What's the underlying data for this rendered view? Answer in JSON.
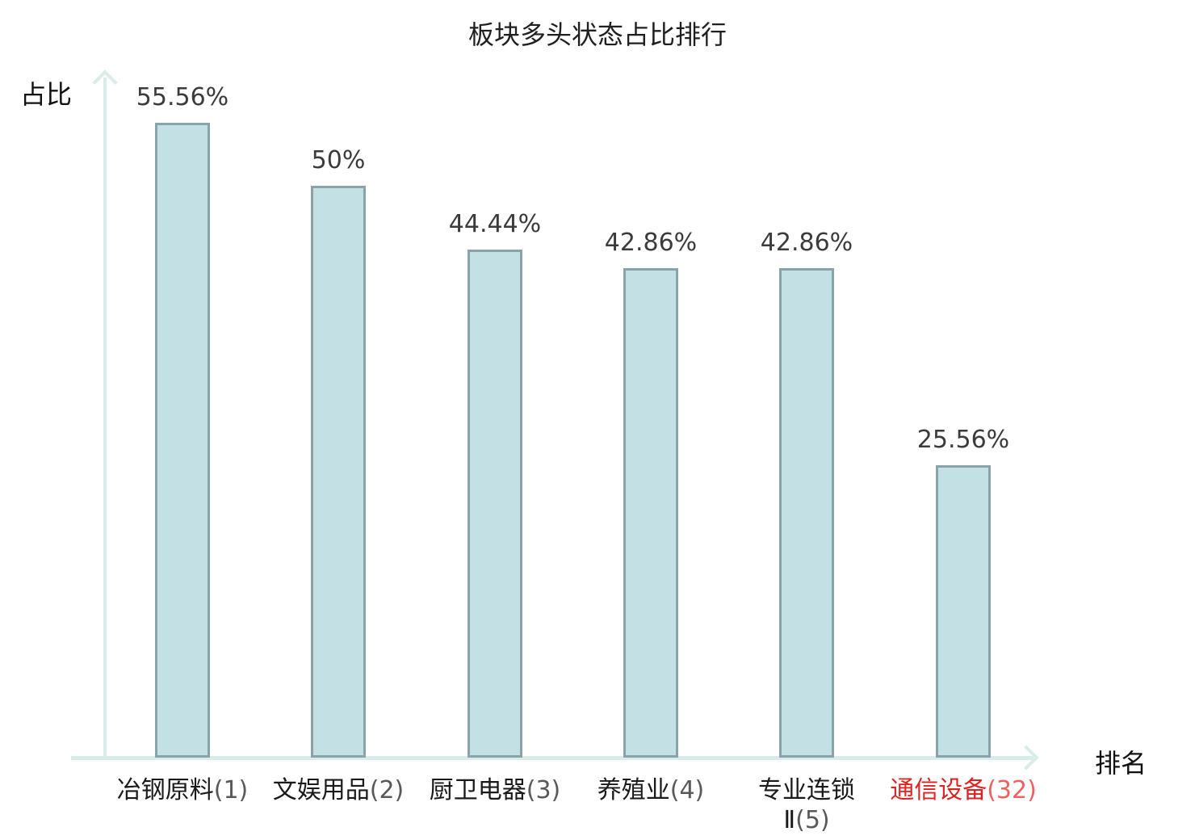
{
  "title": "板块多头状态占比排行",
  "axes": {
    "y_label": "占比",
    "x_label": "排名"
  },
  "colors": {
    "bar_fill": "#c3e1e4",
    "bar_border": "#8aa3a8",
    "axis": "#d9ecea",
    "title": "#1f1f1f",
    "value_label": "#3b3b3b",
    "category": "#1a1a1a",
    "category_rank": "#595959",
    "highlight": "#e02222",
    "highlight_rank": "#ef6060"
  },
  "bars": [
    {
      "value": 55.56,
      "value_label": "55.56%",
      "name": "冶钢原料",
      "rank": "(1)",
      "highlight": false
    },
    {
      "value": 50,
      "value_label": "50%",
      "name": "文娱用品",
      "rank": "(2)",
      "highlight": false
    },
    {
      "value": 44.44,
      "value_label": "44.44%",
      "name": "厨卫电器",
      "rank": "(3)",
      "highlight": false
    },
    {
      "value": 42.86,
      "value_label": "42.86%",
      "name": "养殖业",
      "rank": "(4)",
      "highlight": false
    },
    {
      "value": 42.86,
      "value_label": "42.86%",
      "name": "专业连锁",
      "name_line2": "Ⅱ",
      "rank": "(5)",
      "highlight": false
    },
    {
      "value": 25.56,
      "value_label": "25.56%",
      "name": "通信设备",
      "rank": "(32)",
      "highlight": true
    }
  ],
  "chart_data": {
    "type": "bar",
    "categories": [
      "冶钢原料(1)",
      "文娱用品(2)",
      "厨卫电器(3)",
      "养殖业(4)",
      "专业连锁Ⅱ(5)",
      "通信设备(32)"
    ],
    "values": [
      55.56,
      50,
      44.44,
      42.86,
      42.86,
      25.56
    ],
    "value_labels": [
      "55.56%",
      "50%",
      "44.44%",
      "42.86%",
      "42.86%",
      "25.56%"
    ],
    "title": "板块多头状态占比排行",
    "xlabel": "排名",
    "ylabel": "占比",
    "ylim": [
      0,
      60
    ],
    "grid": false,
    "legend": "none",
    "highlighted_category": "通信设备(32)",
    "highlight_color": "#e02222",
    "bar_color": "#c3e1e4"
  }
}
